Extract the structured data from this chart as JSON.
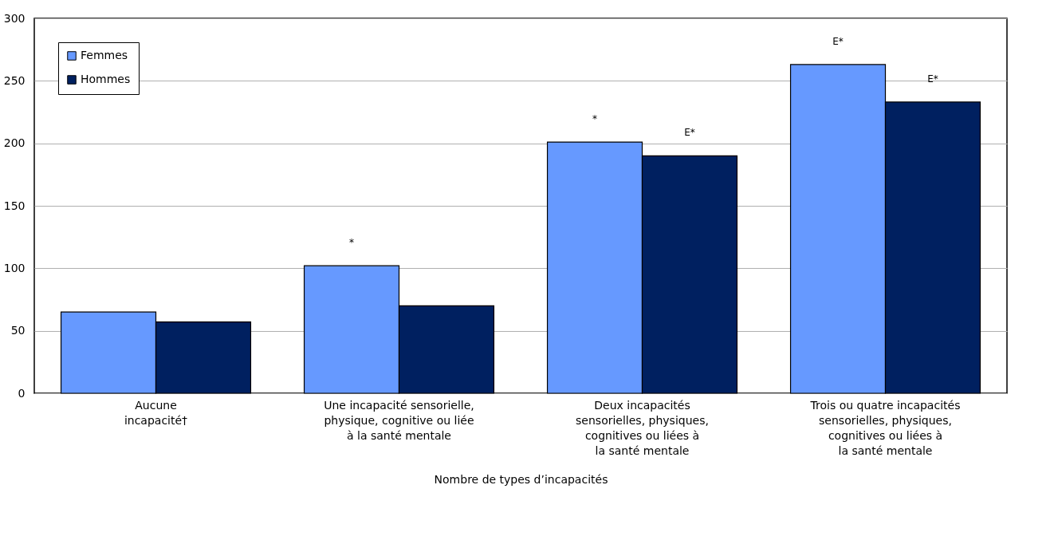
{
  "chart_data": {
    "type": "bar",
    "xlabel": "Nombre de types d’incapacités",
    "categories": [
      "Aucune\nincapacité†",
      "Une incapacité sensorielle,\nphysique, cognitive ou liée\nà la santé mentale",
      "Deux incapacités\nsensorielles, physiques,\ncognitives ou liées à\nla santé mentale",
      "Trois ou quatre incapacités\nsensorielles, physiques,\ncognitives ou liées à\nla santé mentale"
    ],
    "series": [
      {
        "name": "Femmes",
        "color": "#6699ff",
        "values": [
          65,
          102,
          201,
          263
        ],
        "value_labels": [
          null,
          "*",
          "*",
          "E*"
        ]
      },
      {
        "name": "Hommes",
        "color": "#002060",
        "values": [
          57,
          70,
          190,
          233
        ],
        "value_labels": [
          null,
          null,
          "E*",
          "E*"
        ]
      }
    ],
    "ylim": [
      0,
      300
    ],
    "yticks": [
      0,
      50,
      100,
      150,
      200,
      250,
      300
    ],
    "grid": "y",
    "legend": "top left"
  }
}
